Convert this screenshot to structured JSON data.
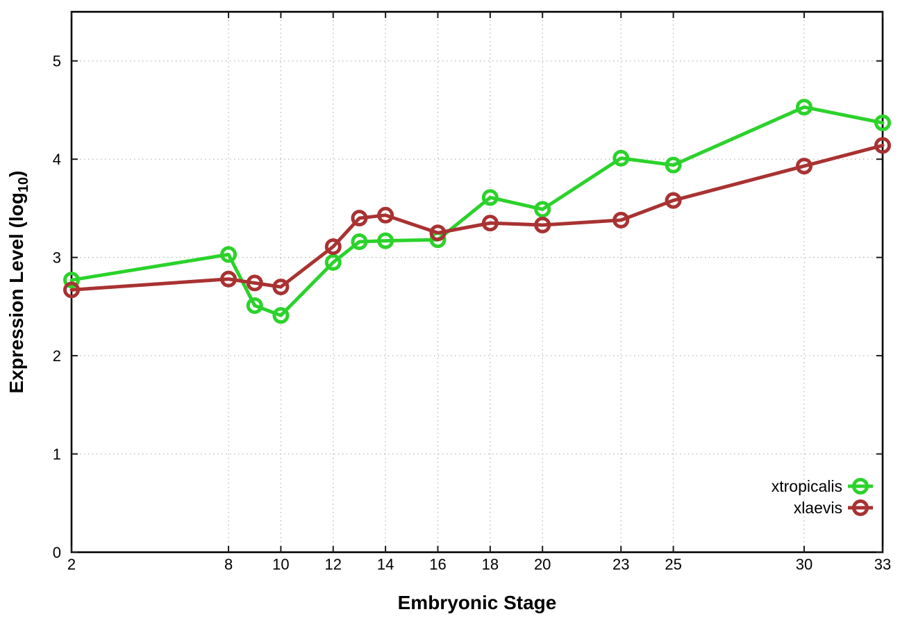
{
  "chart_data": {
    "type": "line",
    "xlabel": "Embryonic Stage",
    "ylabel": "Expression Level (log10)",
    "ylabel_main": "Expression Level (log",
    "ylabel_sub": "10",
    "ylabel_close": ")",
    "x": [
      2,
      8,
      9,
      10,
      12,
      13,
      14,
      16,
      18,
      20,
      23,
      25,
      30,
      33
    ],
    "xlim": [
      2,
      33
    ],
    "ylim": [
      0,
      5.5
    ],
    "xticks": [
      2,
      8,
      10,
      12,
      14,
      16,
      18,
      20,
      23,
      25,
      30,
      33
    ],
    "yticks": [
      0,
      1,
      2,
      3,
      4,
      5
    ],
    "grid": true,
    "legend_position": "inside-bottom-right",
    "marker": "open-circle",
    "series": [
      {
        "name": "xtropicalis",
        "color": "#2bd22b",
        "values": [
          2.77,
          3.03,
          2.51,
          2.41,
          2.95,
          3.16,
          3.17,
          3.18,
          3.61,
          3.49,
          4.01,
          3.94,
          4.53,
          4.37
        ]
      },
      {
        "name": "xlaevis",
        "color": "#a93232",
        "values": [
          2.67,
          2.78,
          2.74,
          2.7,
          3.11,
          3.4,
          3.43,
          3.25,
          3.35,
          3.33,
          3.38,
          3.58,
          3.93,
          4.14
        ]
      }
    ],
    "colors": {
      "background": "#ffffff",
      "border": "#000000",
      "grid": "#bdbdbd",
      "tick": "#1a1a1a",
      "text": "#000000"
    }
  }
}
